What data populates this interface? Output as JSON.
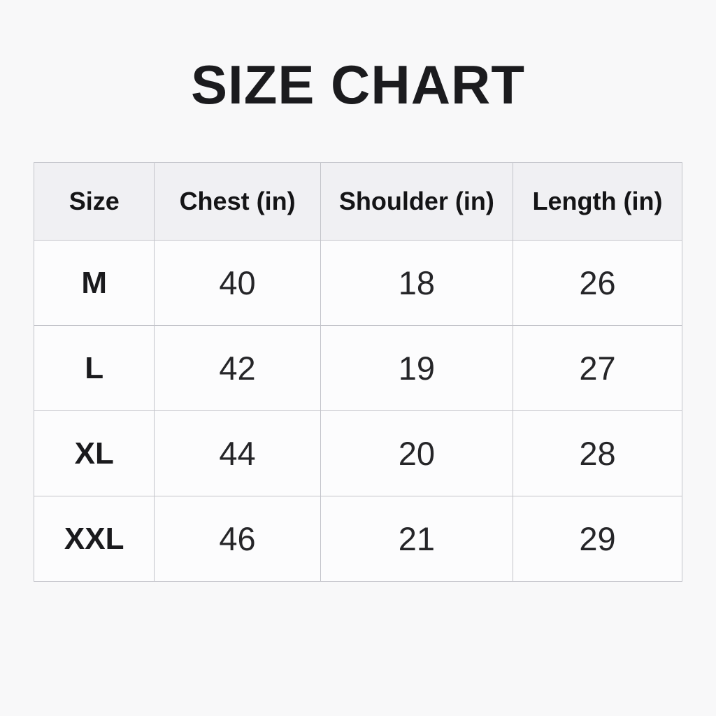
{
  "title": "SIZE CHART",
  "table": {
    "headers": [
      "Size",
      "Chest (in)",
      "Shoulder (in)",
      "Length (in)"
    ],
    "rows": [
      [
        "M",
        "40",
        "18",
        "26"
      ],
      [
        "L",
        "42",
        "19",
        "27"
      ],
      [
        "XL",
        "44",
        "20",
        "28"
      ],
      [
        "XXL",
        "46",
        "21",
        "29"
      ]
    ]
  },
  "chart_data": {
    "type": "table",
    "title": "SIZE CHART",
    "columns": [
      "Size",
      "Chest (in)",
      "Shoulder (in)",
      "Length (in)"
    ],
    "rows": [
      [
        "M",
        40,
        18,
        26
      ],
      [
        "L",
        42,
        19,
        27
      ],
      [
        "XL",
        44,
        20,
        28
      ],
      [
        "XXL",
        46,
        21,
        29
      ]
    ]
  },
  "colors": {
    "page_background": "#f8f8f9",
    "header_background": "#f0f0f3",
    "cell_background": "#fcfcfd",
    "border": "#c3c4ca",
    "text": "#1d1d1f"
  }
}
